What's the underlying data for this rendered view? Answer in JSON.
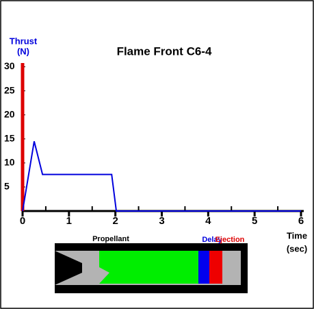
{
  "chart_data": {
    "type": "line",
    "title": "Flame Front C6-4",
    "y_label_line1": "Thrust",
    "y_label_line2": "(N)",
    "x_label_line1": "Time",
    "x_label_line2": "(sec)",
    "x": [
      0,
      0.25,
      0.43,
      1.92,
      2.02,
      6
    ],
    "series": [
      {
        "name": "Thrust",
        "color": "#0000dd",
        "values": [
          0,
          14.5,
          7.6,
          7.6,
          0,
          0
        ]
      }
    ],
    "xlim": [
      0,
      6
    ],
    "ylim": [
      0,
      30.5
    ],
    "xticks": [
      0,
      1,
      2,
      3,
      4,
      5,
      6
    ],
    "x_minor_ticks": [
      0.5,
      1.5,
      2.5,
      3.5,
      4.5,
      5.5
    ],
    "yticks": [
      5,
      10,
      15,
      20,
      25,
      30
    ],
    "time_marker": {
      "x": 0,
      "color": "#dd0000"
    },
    "motor_labels": {
      "propellant": "Propellant",
      "delay": "Delay",
      "ejection": "Ejection"
    }
  }
}
